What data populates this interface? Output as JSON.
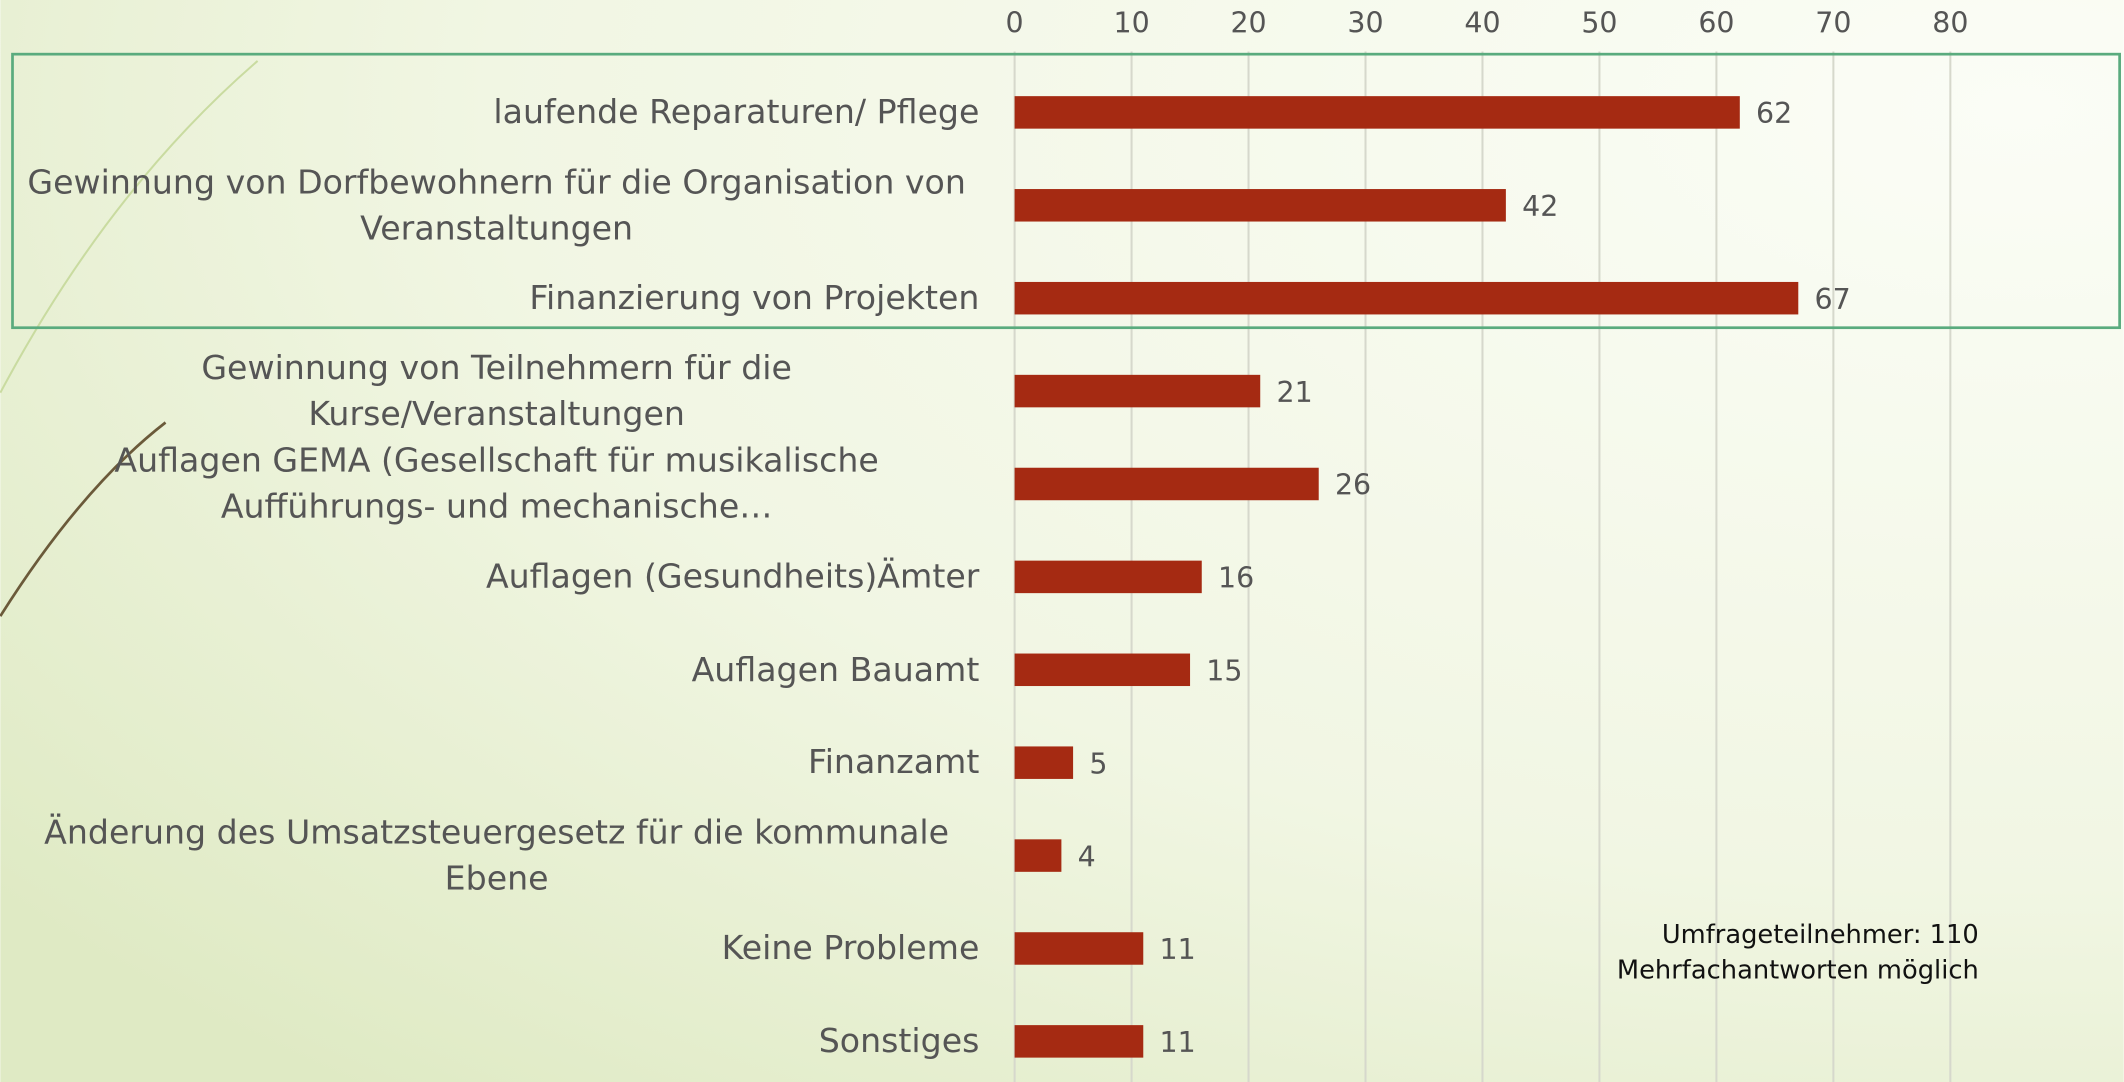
{
  "chart_data": {
    "type": "barh",
    "categories": [
      "laufende Reparaturen/ Pflege",
      "Gewinnung von Dorfbewohnern für die Organisation von Veranstaltungen",
      "Finanzierung von Projekten",
      "Gewinnung von Teilnehmern für die Kurse/Veranstaltungen",
      "Auflagen GEMA (Gesellschaft für musikalische Aufführungs- und mechanische…",
      "Auflagen (Gesundheits)Ämter",
      "Auflagen Bauamt",
      "Finanzamt",
      "Änderung des Umsatzsteuergesetz für die kommunale Ebene",
      "Keine Probleme",
      "Sonstiges"
    ],
    "values": [
      62,
      42,
      67,
      21,
      26,
      16,
      15,
      5,
      4,
      11,
      11
    ],
    "color": "#a52a12",
    "xlim": [
      0,
      80
    ],
    "xticks": [
      0,
      10,
      20,
      30,
      40,
      50,
      60,
      70,
      80
    ],
    "grid": true,
    "annotations": [
      "Umfrageteilnehmer: 110",
      "Mehrfachantworten möglich"
    ]
  }
}
